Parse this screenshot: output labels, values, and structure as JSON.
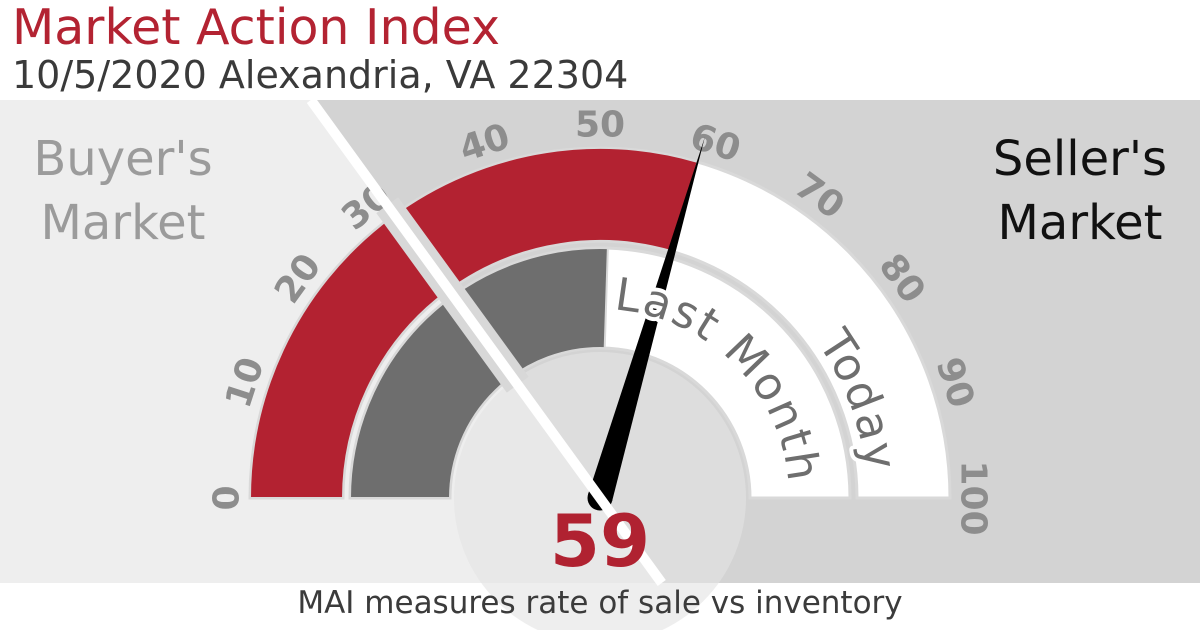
{
  "header": {
    "title": "Market Action Index",
    "subtitle": "10/5/2020 Alexandria, VA 22304"
  },
  "side_labels": {
    "buyer_line1": "Buyer's",
    "buyer_line2": "Market",
    "seller_line1": "Seller's",
    "seller_line2": "Market"
  },
  "footer": {
    "caption": "MAI measures rate of sale vs inventory"
  },
  "chart_data": {
    "type": "gauge",
    "title": "Market Action Index",
    "date": "10/5/2020",
    "location": "Alexandria, VA 22304",
    "min": 0,
    "max": 100,
    "ticks": [
      0,
      10,
      20,
      30,
      40,
      50,
      60,
      70,
      80,
      90,
      100
    ],
    "today_value": 59,
    "value_display": "59",
    "last_month_value": 51,
    "buyer_seller_threshold": 30,
    "today_label": "Today",
    "last_month_label": "Last Month",
    "buyer_zone_label": "Buyer's Market",
    "seller_zone_label": "Seller's Market",
    "caption": "MAI measures rate of sale vs inventory"
  },
  "colors": {
    "accent_red": "#b32231",
    "value_red": "#b02231",
    "ring_dark_gray": "#6e6e6e",
    "ring_white": "#ffffff",
    "ring_outline": "#d9d9d9",
    "buyer_bg": "#eeeeee",
    "seller_bg": "#d3d3d3",
    "hub_fill": "rgba(228,228,228,0.62)",
    "needle": "#000000",
    "tick_text": "#8d8d8d",
    "arc_label_text": "#6e6e6e",
    "buyer_text": "#9b9b9b",
    "seller_text": "#111111",
    "threshold_line": "#ffffff",
    "threshold_flank": "#d8d8d8"
  }
}
